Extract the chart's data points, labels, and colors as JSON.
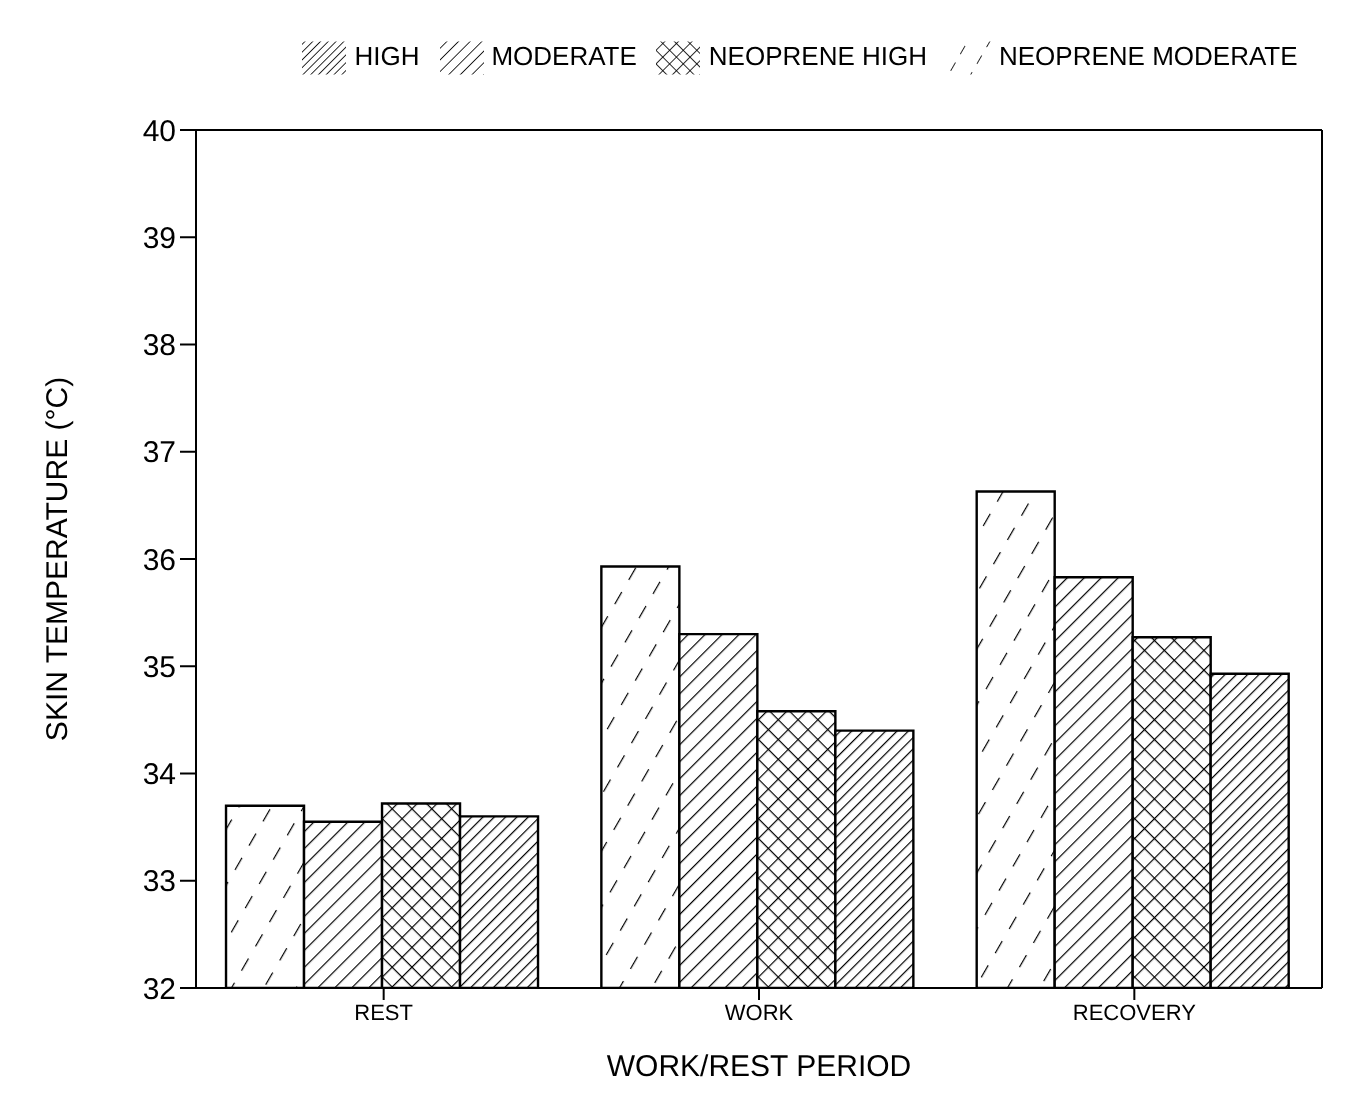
{
  "chart_data": {
    "type": "bar",
    "xlabel": "WORK/REST PERIOD",
    "ylabel": "SKIN TEMPERATURE (°C)",
    "categories": [
      "REST",
      "WORK",
      "RECOVERY"
    ],
    "series": [
      {
        "name": "NEOPRENE MODERATE",
        "color": "#000000",
        "values": [
          33.7,
          35.93,
          36.63
        ]
      },
      {
        "name": "MODERATE",
        "color": "#000000",
        "values": [
          33.55,
          35.3,
          35.83
        ]
      },
      {
        "name": "NEOPRENE HIGH",
        "color": "#000000",
        "values": [
          33.72,
          34.58,
          35.27
        ]
      },
      {
        "name": "HIGH",
        "color": "#000000",
        "values": [
          33.6,
          34.4,
          34.93
        ]
      }
    ],
    "ylim": [
      32,
      40
    ],
    "yticks": [
      32,
      33,
      34,
      35,
      36,
      37,
      38,
      39,
      40
    ],
    "legend": "top"
  }
}
